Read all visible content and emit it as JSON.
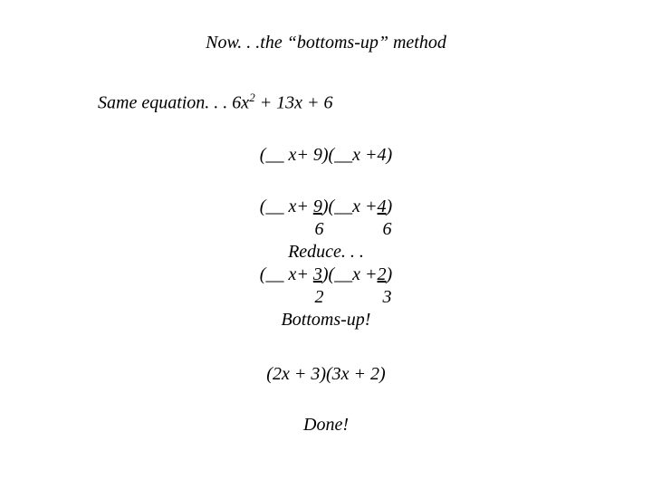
{
  "title": "Now. . .the “bottoms-up” method",
  "equation_prefix": "Same equation. . . 6x",
  "equation_exp": "2",
  "equation_suffix": " + 13x + 6",
  "step1": {
    "a": "(__ x+ 9)(__x +4)"
  },
  "step2": {
    "open1": "(__ x+ ",
    "n1": "9",
    "mid": ")(__x +",
    "n2": "4",
    "close": ")",
    "den_line": "            6             6",
    "reduce": "Reduce. . .",
    "open2": "(__ x+ ",
    "n3": "3",
    "mid2": ")(__x +",
    "n4": "2",
    "close2": ")",
    "den_line2": "            2             3",
    "bottoms": "Bottoms-up!"
  },
  "result": "(2x + 3)(3x + 2)",
  "done": "Done!"
}
